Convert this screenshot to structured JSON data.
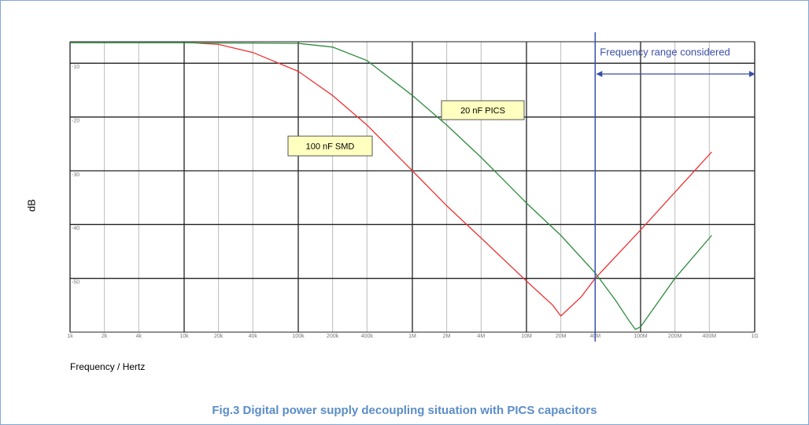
{
  "chart_data": {
    "type": "line",
    "title": "Fig.3 Digital power supply decoupling situation with PICS capacitors",
    "xlabel": "Frequency / Hertz",
    "ylabel": "dB",
    "log_x": true,
    "grid": true,
    "xlim": [
      1000,
      1000000000
    ],
    "ylim": [
      -60,
      -6
    ],
    "xticks": [
      {
        "value": 1000,
        "label": "1k"
      },
      {
        "value": 2000,
        "label": "2k"
      },
      {
        "value": 4000,
        "label": "4k"
      },
      {
        "value": 10000,
        "label": "10k"
      },
      {
        "value": 20000,
        "label": "20k"
      },
      {
        "value": 40000,
        "label": "40k"
      },
      {
        "value": 100000,
        "label": "100k"
      },
      {
        "value": 200000,
        "label": "200k"
      },
      {
        "value": 400000,
        "label": "400k"
      },
      {
        "value": 1000000,
        "label": "1M"
      },
      {
        "value": 2000000,
        "label": "2M"
      },
      {
        "value": 4000000,
        "label": "4M"
      },
      {
        "value": 10000000,
        "label": "10M"
      },
      {
        "value": 20000000,
        "label": "20M"
      },
      {
        "value": 40000000,
        "label": "40M"
      },
      {
        "value": 100000000,
        "label": "100M"
      },
      {
        "value": 200000000,
        "label": "200M"
      },
      {
        "value": 400000000,
        "label": "400M"
      },
      {
        "value": 1000000000,
        "label": "1G"
      }
    ],
    "yticks": [
      -10,
      -20,
      -30,
      -40,
      -50
    ],
    "series": [
      {
        "name": "100 nF SMD",
        "color": "#ee3333",
        "x": [
          12000,
          20000,
          40000,
          100000,
          200000,
          400000,
          1000000,
          2000000,
          4000000,
          10000000,
          17000000,
          20000000,
          30000000,
          40000000,
          100000000,
          200000000,
          420000000
        ],
        "values": [
          -6.2,
          -6.5,
          -8,
          -11.5,
          -16,
          -21.5,
          -30,
          -36.5,
          -42.5,
          -50.5,
          -55,
          -57,
          -53.5,
          -50,
          -41,
          -34,
          -26.5
        ]
      },
      {
        "name": "20 nF PICS",
        "color": "#2e8b3e",
        "x": [
          1000,
          10000,
          100000,
          200000,
          400000,
          1000000,
          2000000,
          4000000,
          10000000,
          20000000,
          40000000,
          60000000,
          80000000,
          90000000,
          100000000,
          200000000,
          420000000
        ],
        "values": [
          -6.2,
          -6.2,
          -6.3,
          -7,
          -9.5,
          -16,
          -21.5,
          -27.5,
          -36,
          -42,
          -49,
          -54,
          -58,
          -59.5,
          -59,
          -50,
          -42
        ]
      }
    ],
    "annotations": [
      {
        "text": "Frequency range considered",
        "x": [
          40000000,
          1000000000
        ]
      }
    ]
  }
}
